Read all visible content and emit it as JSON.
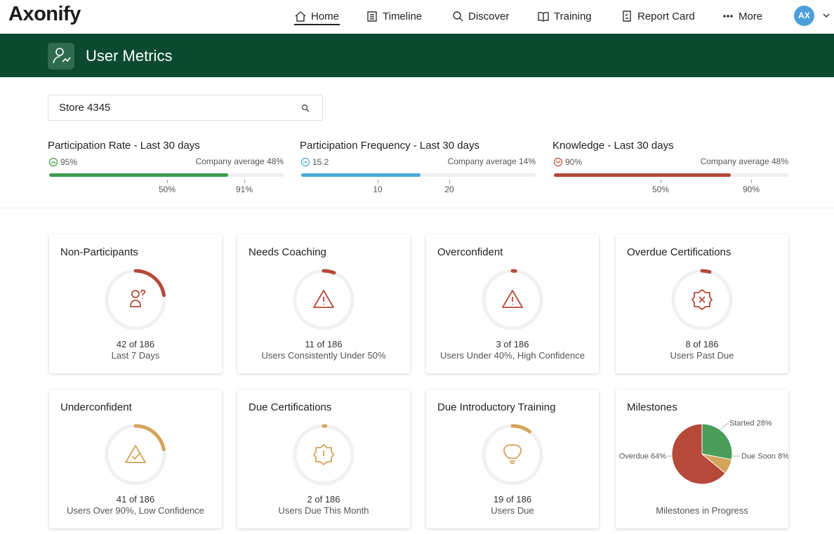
{
  "nav": {
    "logo": "Axonify",
    "items": [
      "Home",
      "Timeline",
      "Discover",
      "Training",
      "Report Card",
      "More"
    ],
    "avatar": "AX"
  },
  "banner": {
    "title": "User Metrics"
  },
  "search": {
    "value": "Store 4345"
  },
  "metrics": [
    {
      "title": "Participation Rate - Last 30 days",
      "value": "95%",
      "average": "Company average 48%",
      "ticks": [
        "50%",
        "91%"
      ],
      "color": "#3d9b4f"
    },
    {
      "title": "Participation Frequency - Last 30 days",
      "value": "15.2",
      "average": "Company average 14%",
      "ticks": [
        "10",
        "20"
      ],
      "color": "#4aa8d8"
    },
    {
      "title": "Knowledge - Last 30 days",
      "value": "90%",
      "average": "Company average 48%",
      "ticks": [
        "50%",
        "90%"
      ],
      "color": "#b5493a"
    }
  ],
  "cards": [
    {
      "title": "Non-Participants",
      "count": 42,
      "of": "of",
      "total": 186,
      "caption": "Last 7 Days",
      "color": "#b5493a"
    },
    {
      "title": "Needs Coaching",
      "count": 11,
      "of": "of",
      "total": 186,
      "caption": "Users Consistently Under 50%",
      "color": "#b5493a"
    },
    {
      "title": "Overconfident",
      "count": 3,
      "of": "of",
      "total": 186,
      "caption": "Users Under 40%, High Confidence",
      "color": "#b5493a"
    },
    {
      "title": "Overdue Certifications",
      "count": 8,
      "of": "of",
      "total": 186,
      "caption": "Users Past Due",
      "color": "#b5493a"
    },
    {
      "title": "Underconfident",
      "count": 41,
      "of": "of",
      "total": 186,
      "caption": "Users Over 90%, Low Confidence",
      "color": "#d4a35a"
    },
    {
      "title": "Due Certifications",
      "count": 2,
      "of": "of",
      "total": 186,
      "caption": "Users Due This Month",
      "color": "#d4a35a"
    },
    {
      "title": "Due Introductory Training",
      "count": 19,
      "of": "of",
      "total": 186,
      "caption": "Users Due",
      "color": "#d4a35a"
    }
  ],
  "milestones": {
    "title": "Milestones",
    "type": "pie",
    "caption": "Milestones in Progress",
    "slices": [
      {
        "name": "Started",
        "value": 28,
        "value_label": "28%",
        "color": "#4a9e5a"
      },
      {
        "name": "Due Soon",
        "value": 8,
        "value_label": "8%",
        "color": "#d4a35a"
      },
      {
        "name": "Overdue",
        "value": 64,
        "value_label": "64%",
        "color": "#b5493a"
      }
    ]
  }
}
